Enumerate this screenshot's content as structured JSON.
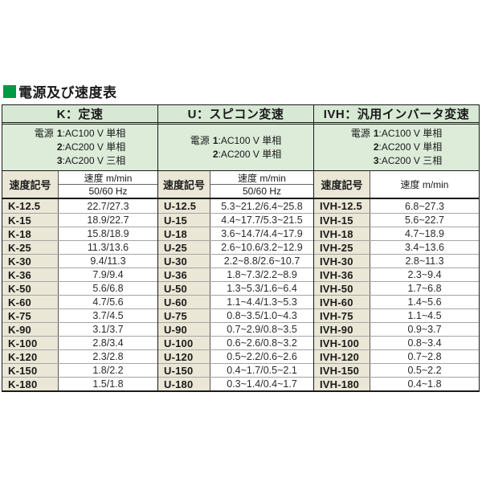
{
  "title": "電源及び速度表",
  "accent_green": "#009944",
  "columns": {
    "code": "速度記号",
    "speed": "速度 m/min",
    "hz": "50/60 Hz"
  },
  "sections": [
    {
      "id": "K",
      "header": "K：定速",
      "power_label": "電源",
      "power_options": [
        {
          "num": "1",
          "desc": ":AC100 V 単相"
        },
        {
          "num": "2",
          "desc": ":AC200 V 単相"
        },
        {
          "num": "3",
          "desc": ":AC200 V 三相"
        }
      ],
      "rows": [
        {
          "code": "K-12.5",
          "speed": "22.7/27.3"
        },
        {
          "code": "K-15",
          "speed": "18.9/22.7"
        },
        {
          "code": "K-18",
          "speed": "15.8/18.9"
        },
        {
          "code": "K-25",
          "speed": "11.3/13.6"
        },
        {
          "code": "K-30",
          "speed": "9.4/11.3"
        },
        {
          "code": "K-36",
          "speed": "7.9/9.4"
        },
        {
          "code": "K-50",
          "speed": "5.6/6.8"
        },
        {
          "code": "K-60",
          "speed": "4.7/5.6"
        },
        {
          "code": "K-75",
          "speed": "3.7/4.5"
        },
        {
          "code": "K-90",
          "speed": "3.1/3.7"
        },
        {
          "code": "K-100",
          "speed": "2.8/3.4"
        },
        {
          "code": "K-120",
          "speed": "2.3/2.8"
        },
        {
          "code": "K-150",
          "speed": "1.8/2.2"
        },
        {
          "code": "K-180",
          "speed": "1.5/1.8"
        }
      ]
    },
    {
      "id": "U",
      "header": "U：スピコン変速",
      "power_label": "電源",
      "power_options": [
        {
          "num": "1",
          "desc": ":AC100 V 単相"
        },
        {
          "num": "2",
          "desc": ":AC200 V 単相"
        }
      ],
      "rows": [
        {
          "code": "U-12.5",
          "speed": "5.3~21.2/6.4~25.8"
        },
        {
          "code": "U-15",
          "speed": "4.4~17.7/5.3~21.5"
        },
        {
          "code": "U-18",
          "speed": "3.6~14.7/4.4~17.9"
        },
        {
          "code": "U-25",
          "speed": "2.6~10.6/3.2~12.9"
        },
        {
          "code": "U-30",
          "speed": "2.2~8.8/2.6~10.7"
        },
        {
          "code": "U-36",
          "speed": "1.8~7.3/2.2~8.9"
        },
        {
          "code": "U-50",
          "speed": "1.3~5.3/1.6~6.4"
        },
        {
          "code": "U-60",
          "speed": "1.1~4.4/1.3~5.3"
        },
        {
          "code": "U-75",
          "speed": "0.8~3.5/1.0~4.3"
        },
        {
          "code": "U-90",
          "speed": "0.7~2.9/0.8~3.5"
        },
        {
          "code": "U-100",
          "speed": "0.6~2.6/0.8~3.2"
        },
        {
          "code": "U-120",
          "speed": "0.5~2.2/0.6~2.6"
        },
        {
          "code": "U-150",
          "speed": "0.4~1.7/0.5~2.1"
        },
        {
          "code": "U-180",
          "speed": "0.3~1.4/0.4~1.7"
        }
      ]
    },
    {
      "id": "IVH",
      "header": "IVH：汎用インバータ変速",
      "power_label": "電源",
      "power_options": [
        {
          "num": "1",
          "desc": ":AC100 V 単相"
        },
        {
          "num": "2",
          "desc": ":AC200 V 単相"
        },
        {
          "num": "3",
          "desc": ":AC200 V 三相"
        }
      ],
      "rows": [
        {
          "code": "IVH-12.5",
          "speed": "6.8~27.3"
        },
        {
          "code": "IVH-15",
          "speed": "5.6~22.7"
        },
        {
          "code": "IVH-18",
          "speed": "4.7~18.9"
        },
        {
          "code": "IVH-25",
          "speed": "3.4~13.6"
        },
        {
          "code": "IVH-30",
          "speed": "2.8~11.3"
        },
        {
          "code": "IVH-36",
          "speed": "2.3~9.4"
        },
        {
          "code": "IVH-50",
          "speed": "1.7~6.8"
        },
        {
          "code": "IVH-60",
          "speed": "1.4~5.6"
        },
        {
          "code": "IVH-75",
          "speed": "1.1~4.5"
        },
        {
          "code": "IVH-90",
          "speed": "0.9~3.7"
        },
        {
          "code": "IVH-100",
          "speed": "0.8~3.4"
        },
        {
          "code": "IVH-120",
          "speed": "0.7~2.8"
        },
        {
          "code": "IVH-150",
          "speed": "0.5~2.2"
        },
        {
          "code": "IVH-180",
          "speed": "0.4~1.8"
        }
      ]
    }
  ]
}
